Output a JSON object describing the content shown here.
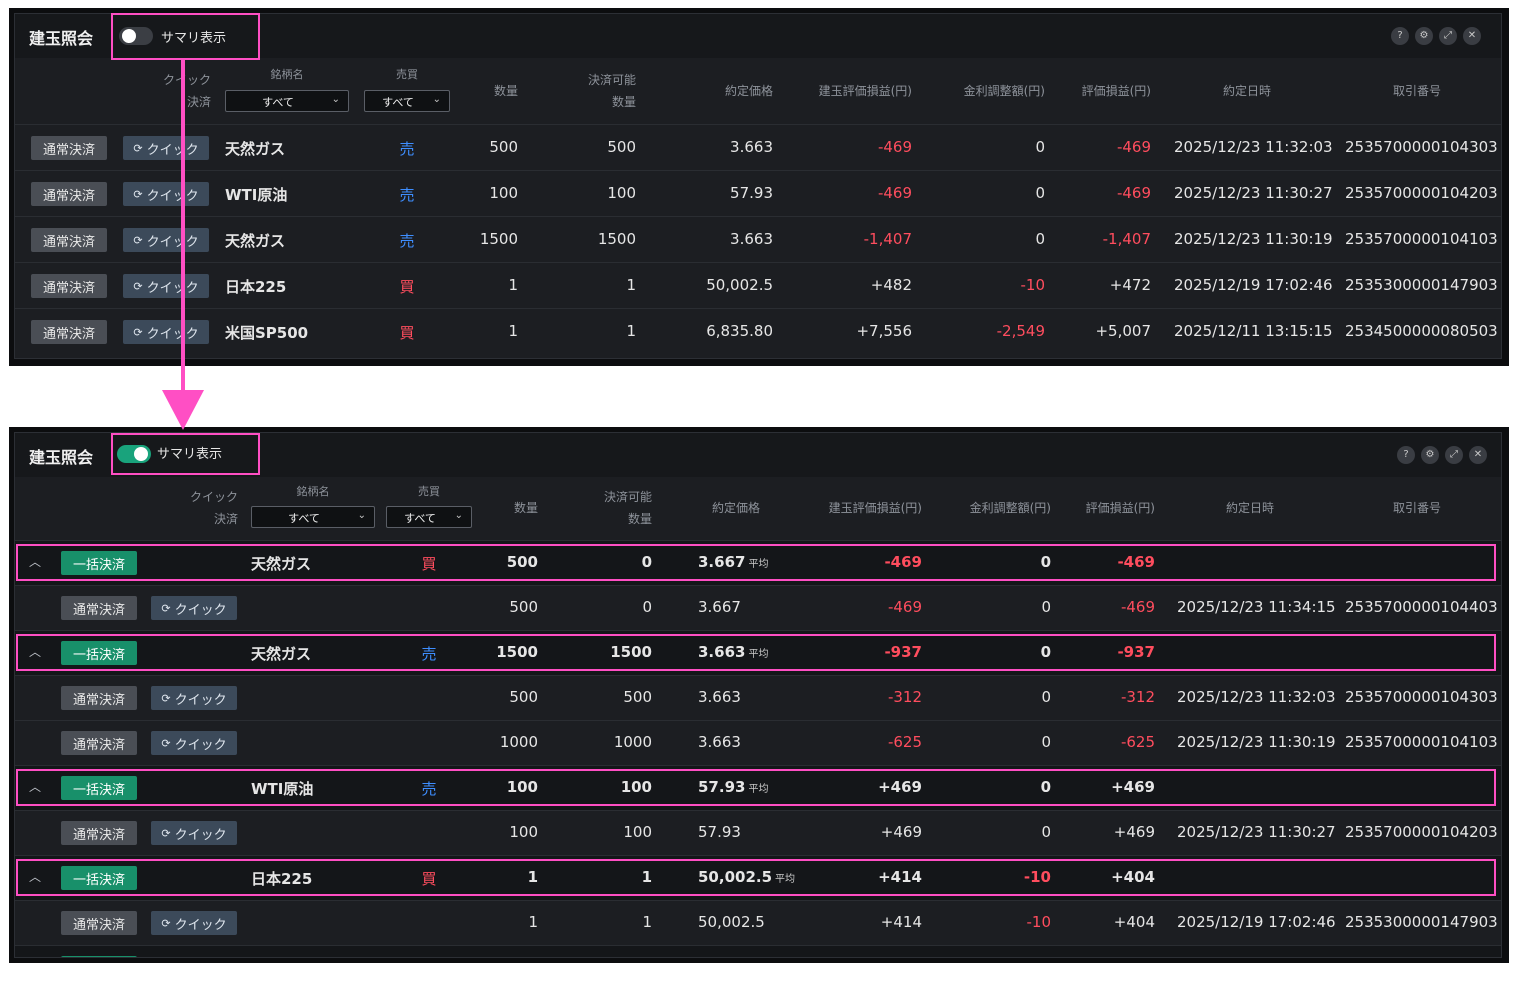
{
  "title": "建玉照会",
  "toggle_label": "サマリ表示",
  "icons": {
    "help": "?",
    "settings": "⚙",
    "expand": "⤢",
    "close": "✕"
  },
  "headers": {
    "quick_settle_1": "クイック",
    "quick_settle_2": "決済",
    "symbol": "銘柄名",
    "side": "売買",
    "quantity": "数量",
    "settleable_1": "決済可能",
    "settleable_2": "数量",
    "exec_price": "約定価格",
    "position_pl": "建玉評価損益(円)",
    "rate_adj": "金利調整額(円)",
    "eval_pl": "評価損益(円)",
    "exec_datetime": "約定日時",
    "trade_no": "取引番号"
  },
  "filters": {
    "symbol_value": "すべて",
    "side_value": "すべて"
  },
  "buttons": {
    "normal": "通常決済",
    "quick": "クイック",
    "bulk": "一括決済"
  },
  "avg_label": "平均",
  "panel1_rows": [
    {
      "symbol": "天然ガス",
      "side": "売",
      "qty": "500",
      "avail": "500",
      "price": "3.663",
      "pos_pl": "-469",
      "adj": "0",
      "eval": "-469",
      "datetime": "2025/12/23 11:32:03",
      "trade_no": "2535700000104303"
    },
    {
      "symbol": "WTI原油",
      "side": "売",
      "qty": "100",
      "avail": "100",
      "price": "57.93",
      "pos_pl": "-469",
      "adj": "0",
      "eval": "-469",
      "datetime": "2025/12/23 11:30:27",
      "trade_no": "2535700000104203"
    },
    {
      "symbol": "天然ガス",
      "side": "売",
      "qty": "1500",
      "avail": "1500",
      "price": "3.663",
      "pos_pl": "-1,407",
      "adj": "0",
      "eval": "-1,407",
      "datetime": "2025/12/23 11:30:19",
      "trade_no": "2535700000104103"
    },
    {
      "symbol": "日本225",
      "side": "買",
      "qty": "1",
      "avail": "1",
      "price": "50,002.5",
      "pos_pl": "+482",
      "adj": "-10",
      "eval": "+472",
      "datetime": "2025/12/19 17:02:46",
      "trade_no": "2535300000147903"
    },
    {
      "symbol": "米国SP500",
      "side": "買",
      "qty": "1",
      "avail": "1",
      "price": "6,835.80",
      "pos_pl": "+7,556",
      "adj": "-2,549",
      "eval": "+5,007",
      "datetime": "2025/12/11 13:15:15",
      "trade_no": "2534500000080503"
    }
  ],
  "panel2_rows": [
    {
      "type": "summary",
      "symbol": "天然ガス",
      "side": "買",
      "qty": "500",
      "avail": "0",
      "price": "3.667",
      "pos_pl": "-469",
      "adj": "0",
      "eval": "-469"
    },
    {
      "type": "detail",
      "qty": "500",
      "avail": "0",
      "price": "3.667",
      "pos_pl": "-469",
      "adj": "0",
      "eval": "-469",
      "datetime": "2025/12/23 11:34:15",
      "trade_no": "2535700000104403"
    },
    {
      "type": "summary",
      "symbol": "天然ガス",
      "side": "売",
      "qty": "1500",
      "avail": "1500",
      "price": "3.663",
      "pos_pl": "-937",
      "adj": "0",
      "eval": "-937"
    },
    {
      "type": "detail",
      "qty": "500",
      "avail": "500",
      "price": "3.663",
      "pos_pl": "-312",
      "adj": "0",
      "eval": "-312",
      "datetime": "2025/12/23 11:32:03",
      "trade_no": "2535700000104303"
    },
    {
      "type": "detail",
      "qty": "1000",
      "avail": "1000",
      "price": "3.663",
      "pos_pl": "-625",
      "adj": "0",
      "eval": "-625",
      "datetime": "2025/12/23 11:30:19",
      "trade_no": "2535700000104103"
    },
    {
      "type": "summary",
      "symbol": "WTI原油",
      "side": "売",
      "qty": "100",
      "avail": "100",
      "price": "57.93",
      "pos_pl": "+469",
      "adj": "0",
      "eval": "+469"
    },
    {
      "type": "detail",
      "qty": "100",
      "avail": "100",
      "price": "57.93",
      "pos_pl": "+469",
      "adj": "0",
      "eval": "+469",
      "datetime": "2025/12/23 11:30:27",
      "trade_no": "2535700000104203"
    },
    {
      "type": "summary",
      "symbol": "日本225",
      "side": "買",
      "qty": "1",
      "avail": "1",
      "price": "50,002.5",
      "pos_pl": "+414",
      "adj": "-10",
      "eval": "+404"
    },
    {
      "type": "detail",
      "qty": "1",
      "avail": "1",
      "price": "50,002.5",
      "pos_pl": "+414",
      "adj": "-10",
      "eval": "+404",
      "datetime": "2025/12/19 17:02:46",
      "trade_no": "2535300000147903"
    }
  ],
  "colors": {
    "sell": "#3e8eff",
    "buy": "#ff4d5e",
    "negative": "#ff4d5e",
    "toggle_on": "#19a37c",
    "bulk_button": "#18906a",
    "highlight": "#ff4fc4"
  }
}
